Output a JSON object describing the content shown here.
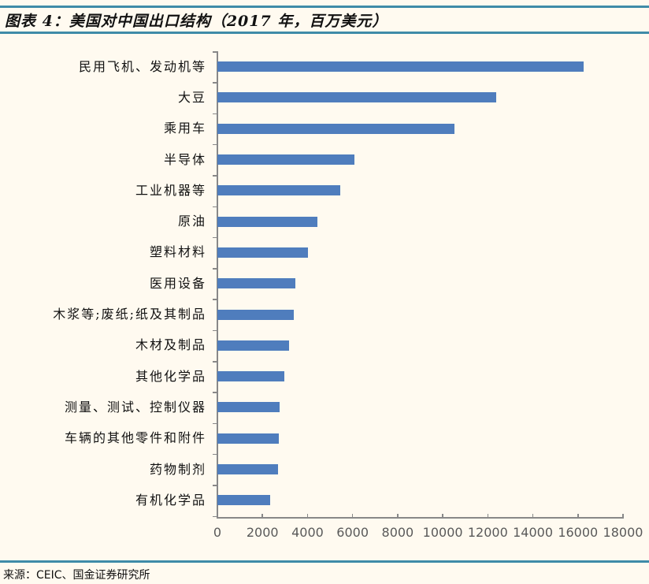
{
  "header": {
    "title": "图表 4：美国对中国出口结构（2017 年，百万美元）"
  },
  "footer": {
    "source": "来源：CEIC、国金证券研究所"
  },
  "colors": {
    "bar": "#4f7dbd",
    "rule": "#3f8ba8",
    "background": "#fffaf0",
    "axis": "#888888"
  },
  "chart_data": {
    "type": "bar",
    "orientation": "horizontal",
    "title": "图表 4：美国对中国出口结构（2017 年，百万美元）",
    "xlabel": "",
    "ylabel": "",
    "unit": "百万美元",
    "xlim": [
      0,
      18000
    ],
    "x_ticks": [
      "0",
      "2000",
      "4000",
      "6000",
      "8000",
      "10000",
      "12000",
      "14000",
      "16000",
      "18000"
    ],
    "grid": false,
    "legend": null,
    "categories": [
      "民用飞机、发动机等",
      "大豆",
      "乘用车",
      "半导体",
      "工业机器等",
      "原油",
      "塑料材料",
      "医用设备",
      "木浆等;废纸;纸及其制品",
      "木材及制品",
      "其他化学品",
      "测量、测试、控制仪器",
      "车辆的其他零件和附件",
      "药物制剂",
      "有机化学品"
    ],
    "values": [
      16250,
      12380,
      10530,
      6080,
      5450,
      4440,
      4020,
      3460,
      3390,
      3180,
      2970,
      2760,
      2730,
      2690,
      2340
    ]
  }
}
